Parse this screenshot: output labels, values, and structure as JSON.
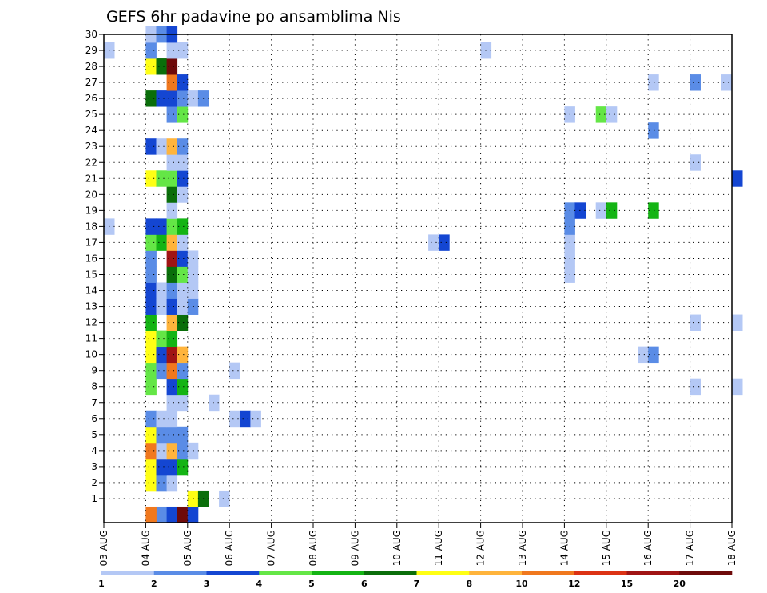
{
  "chart_data": {
    "type": "heatmap",
    "title": "GEFS 6hr padavine po ansamblima Nis",
    "x_ticks": [
      "03 AUG",
      "04 AUG",
      "05 AUG",
      "06 AUG",
      "07 AUG",
      "08 AUG",
      "09 AUG",
      "10 AUG",
      "11 AUG",
      "12 AUG",
      "13 AUG",
      "14 AUG",
      "15 AUG",
      "16 AUG",
      "17 AUG",
      "18 AUG"
    ],
    "y_ticks": [
      "1",
      "2",
      "3",
      "4",
      "5",
      "6",
      "7",
      "8",
      "9",
      "10",
      "11",
      "12",
      "13",
      "14",
      "15",
      "16",
      "17",
      "18",
      "19",
      "20",
      "21",
      "22",
      "23",
      "24",
      "25",
      "26",
      "27",
      "28",
      "29",
      "30"
    ],
    "colorbar": {
      "levels": [
        1,
        2,
        3,
        4,
        5,
        6,
        7,
        8,
        10,
        12,
        15,
        20
      ],
      "labels": [
        "1",
        "2",
        "3",
        "4",
        "5",
        "6",
        "7",
        "8",
        "10",
        "12",
        "15",
        "20"
      ],
      "colors": [
        "#b4c8f5",
        "#5a8ce6",
        "#1446d2",
        "#64e646",
        "#14b414",
        "#0a6e0a",
        "#ffff14",
        "#ffb43c",
        "#f0781e",
        "#dc3214",
        "#a01414",
        "#6e0a0a"
      ]
    },
    "grid": true,
    "cells": [
      {
        "m": 0,
        "d": "04 AUG",
        "s": 1,
        "c": 1
      },
      {
        "m": 0,
        "d": "04 AUG",
        "s": 2,
        "c": 2
      },
      {
        "m": 0,
        "d": "04 AUG",
        "s": 3,
        "c": 11
      },
      {
        "m": 0,
        "d": "05 AUG",
        "s": 0,
        "c": 2
      },
      {
        "m": 0,
        "d": "04 AUG",
        "s": 0,
        "c": 8
      },
      {
        "m": 1,
        "d": "05 AUG",
        "s": 0,
        "c": 6
      },
      {
        "m": 1,
        "d": "05 AUG",
        "s": 1,
        "c": 5
      },
      {
        "m": 1,
        "d": "05 AUG",
        "s": 3,
        "c": 0
      },
      {
        "m": 2,
        "d": "04 AUG",
        "s": 0,
        "c": 6
      },
      {
        "m": 2,
        "d": "04 AUG",
        "s": 1,
        "c": 1
      },
      {
        "m": 2,
        "d": "04 AUG",
        "s": 2,
        "c": 0
      },
      {
        "m": 3,
        "d": "04 AUG",
        "s": 0,
        "c": 6
      },
      {
        "m": 3,
        "d": "04 AUG",
        "s": 1,
        "c": 2
      },
      {
        "m": 3,
        "d": "04 AUG",
        "s": 2,
        "c": 2
      },
      {
        "m": 3,
        "d": "04 AUG",
        "s": 3,
        "c": 4
      },
      {
        "m": 4,
        "d": "04 AUG",
        "s": 0,
        "c": 8
      },
      {
        "m": 4,
        "d": "04 AUG",
        "s": 1,
        "c": 0
      },
      {
        "m": 4,
        "d": "04 AUG",
        "s": 2,
        "c": 7
      },
      {
        "m": 4,
        "d": "04 AUG",
        "s": 3,
        "c": 1
      },
      {
        "m": 4,
        "d": "05 AUG",
        "s": 0,
        "c": 0
      },
      {
        "m": 5,
        "d": "04 AUG",
        "s": 0,
        "c": 6
      },
      {
        "m": 5,
        "d": "04 AUG",
        "s": 1,
        "c": 1
      },
      {
        "m": 5,
        "d": "04 AUG",
        "s": 2,
        "c": 1
      },
      {
        "m": 5,
        "d": "04 AUG",
        "s": 3,
        "c": 1
      },
      {
        "m": 6,
        "d": "04 AUG",
        "s": 0,
        "c": 1
      },
      {
        "m": 6,
        "d": "04 AUG",
        "s": 1,
        "c": 0
      },
      {
        "m": 6,
        "d": "04 AUG",
        "s": 2,
        "c": 0
      },
      {
        "m": 6,
        "d": "06 AUG",
        "s": 0,
        "c": 0
      },
      {
        "m": 6,
        "d": "06 AUG",
        "s": 1,
        "c": 2
      },
      {
        "m": 6,
        "d": "06 AUG",
        "s": 2,
        "c": 0
      },
      {
        "m": 7,
        "d": "04 AUG",
        "s": 2,
        "c": 0
      },
      {
        "m": 7,
        "d": "04 AUG",
        "s": 3,
        "c": 0
      },
      {
        "m": 7,
        "d": "05 AUG",
        "s": 2,
        "c": 0
      },
      {
        "m": 8,
        "d": "04 AUG",
        "s": 0,
        "c": 3
      },
      {
        "m": 8,
        "d": "04 AUG",
        "s": 2,
        "c": 2
      },
      {
        "m": 8,
        "d": "04 AUG",
        "s": 3,
        "c": 4
      },
      {
        "m": 8,
        "d": "17 AUG",
        "s": 0,
        "c": 0
      },
      {
        "m": 8,
        "d": "18 AUG",
        "s": 0,
        "c": 0
      },
      {
        "m": 9,
        "d": "04 AUG",
        "s": 0,
        "c": 3
      },
      {
        "m": 9,
        "d": "04 AUG",
        "s": 1,
        "c": 1
      },
      {
        "m": 9,
        "d": "04 AUG",
        "s": 2,
        "c": 8
      },
      {
        "m": 9,
        "d": "04 AUG",
        "s": 3,
        "c": 1
      },
      {
        "m": 9,
        "d": "06 AUG",
        "s": 0,
        "c": 0
      },
      {
        "m": 10,
        "d": "04 AUG",
        "s": 0,
        "c": 6
      },
      {
        "m": 10,
        "d": "04 AUG",
        "s": 1,
        "c": 2
      },
      {
        "m": 10,
        "d": "04 AUG",
        "s": 2,
        "c": 10
      },
      {
        "m": 10,
        "d": "04 AUG",
        "s": 3,
        "c": 7
      },
      {
        "m": 10,
        "d": "15 AUG",
        "s": 3,
        "c": 0
      },
      {
        "m": 10,
        "d": "16 AUG",
        "s": 0,
        "c": 1
      },
      {
        "m": 11,
        "d": "04 AUG",
        "s": 0,
        "c": 6
      },
      {
        "m": 11,
        "d": "04 AUG",
        "s": 1,
        "c": 3
      },
      {
        "m": 11,
        "d": "04 AUG",
        "s": 2,
        "c": 4
      },
      {
        "m": 12,
        "d": "04 AUG",
        "s": 0,
        "c": 4
      },
      {
        "m": 12,
        "d": "04 AUG",
        "s": 2,
        "c": 7
      },
      {
        "m": 12,
        "d": "04 AUG",
        "s": 3,
        "c": 5
      },
      {
        "m": 12,
        "d": "17 AUG",
        "s": 0,
        "c": 0
      },
      {
        "m": 12,
        "d": "18 AUG",
        "s": 0,
        "c": 0
      },
      {
        "m": 13,
        "d": "04 AUG",
        "s": 0,
        "c": 2
      },
      {
        "m": 13,
        "d": "04 AUG",
        "s": 1,
        "c": 0
      },
      {
        "m": 13,
        "d": "04 AUG",
        "s": 2,
        "c": 2
      },
      {
        "m": 13,
        "d": "04 AUG",
        "s": 3,
        "c": 0
      },
      {
        "m": 13,
        "d": "05 AUG",
        "s": 0,
        "c": 1
      },
      {
        "m": 14,
        "d": "04 AUG",
        "s": 0,
        "c": 2
      },
      {
        "m": 14,
        "d": "04 AUG",
        "s": 1,
        "c": 0
      },
      {
        "m": 14,
        "d": "04 AUG",
        "s": 2,
        "c": 1
      },
      {
        "m": 14,
        "d": "04 AUG",
        "s": 3,
        "c": 0
      },
      {
        "m": 14,
        "d": "05 AUG",
        "s": 0,
        "c": 0
      },
      {
        "m": 15,
        "d": "04 AUG",
        "s": 0,
        "c": 1
      },
      {
        "m": 15,
        "d": "04 AUG",
        "s": 2,
        "c": 5
      },
      {
        "m": 15,
        "d": "04 AUG",
        "s": 3,
        "c": 3
      },
      {
        "m": 15,
        "d": "05 AUG",
        "s": 0,
        "c": 0
      },
      {
        "m": 15,
        "d": "14 AUG",
        "s": 0,
        "c": 0
      },
      {
        "m": 16,
        "d": "04 AUG",
        "s": 0,
        "c": 1
      },
      {
        "m": 16,
        "d": "04 AUG",
        "s": 2,
        "c": 10
      },
      {
        "m": 16,
        "d": "04 AUG",
        "s": 3,
        "c": 2
      },
      {
        "m": 16,
        "d": "05 AUG",
        "s": 0,
        "c": 0
      },
      {
        "m": 16,
        "d": "14 AUG",
        "s": 0,
        "c": 0
      },
      {
        "m": 17,
        "d": "04 AUG",
        "s": 0,
        "c": 3
      },
      {
        "m": 17,
        "d": "04 AUG",
        "s": 1,
        "c": 4
      },
      {
        "m": 17,
        "d": "04 AUG",
        "s": 2,
        "c": 7
      },
      {
        "m": 17,
        "d": "04 AUG",
        "s": 3,
        "c": 0
      },
      {
        "m": 17,
        "d": "10 AUG",
        "s": 3,
        "c": 0
      },
      {
        "m": 17,
        "d": "11 AUG",
        "s": 0,
        "c": 2
      },
      {
        "m": 17,
        "d": "14 AUG",
        "s": 0,
        "c": 0
      },
      {
        "m": 18,
        "d": "03 AUG",
        "s": 0,
        "c": 0
      },
      {
        "m": 18,
        "d": "04 AUG",
        "s": 0,
        "c": 2
      },
      {
        "m": 18,
        "d": "04 AUG",
        "s": 1,
        "c": 2
      },
      {
        "m": 18,
        "d": "04 AUG",
        "s": 2,
        "c": 3
      },
      {
        "m": 18,
        "d": "04 AUG",
        "s": 3,
        "c": 4
      },
      {
        "m": 18,
        "d": "14 AUG",
        "s": 0,
        "c": 1
      },
      {
        "m": 19,
        "d": "04 AUG",
        "s": 2,
        "c": 0
      },
      {
        "m": 19,
        "d": "14 AUG",
        "s": 0,
        "c": 1
      },
      {
        "m": 19,
        "d": "14 AUG",
        "s": 1,
        "c": 2
      },
      {
        "m": 19,
        "d": "14 AUG",
        "s": 3,
        "c": 0
      },
      {
        "m": 19,
        "d": "15 AUG",
        "s": 0,
        "c": 4
      },
      {
        "m": 19,
        "d": "16 AUG",
        "s": 0,
        "c": 4
      },
      {
        "m": 20,
        "d": "04 AUG",
        "s": 2,
        "c": 5
      },
      {
        "m": 20,
        "d": "04 AUG",
        "s": 3,
        "c": 0
      },
      {
        "m": 21,
        "d": "04 AUG",
        "s": 0,
        "c": 6
      },
      {
        "m": 21,
        "d": "04 AUG",
        "s": 1,
        "c": 3
      },
      {
        "m": 21,
        "d": "04 AUG",
        "s": 2,
        "c": 3
      },
      {
        "m": 21,
        "d": "04 AUG",
        "s": 3,
        "c": 2
      },
      {
        "m": 21,
        "d": "18 AUG",
        "s": 0,
        "c": 2
      },
      {
        "m": 22,
        "d": "04 AUG",
        "s": 2,
        "c": 0
      },
      {
        "m": 22,
        "d": "04 AUG",
        "s": 3,
        "c": 0
      },
      {
        "m": 22,
        "d": "17 AUG",
        "s": 0,
        "c": 0
      },
      {
        "m": 23,
        "d": "04 AUG",
        "s": 0,
        "c": 2
      },
      {
        "m": 23,
        "d": "04 AUG",
        "s": 1,
        "c": 0
      },
      {
        "m": 23,
        "d": "04 AUG",
        "s": 2,
        "c": 7
      },
      {
        "m": 23,
        "d": "04 AUG",
        "s": 3,
        "c": 1
      },
      {
        "m": 24,
        "d": "16 AUG",
        "s": 0,
        "c": 1
      },
      {
        "m": 25,
        "d": "04 AUG",
        "s": 2,
        "c": 1
      },
      {
        "m": 25,
        "d": "04 AUG",
        "s": 3,
        "c": 3
      },
      {
        "m": 25,
        "d": "14 AUG",
        "s": 0,
        "c": 0
      },
      {
        "m": 25,
        "d": "14 AUG",
        "s": 3,
        "c": 3
      },
      {
        "m": 25,
        "d": "15 AUG",
        "s": 0,
        "c": 0
      },
      {
        "m": 26,
        "d": "04 AUG",
        "s": 0,
        "c": 5
      },
      {
        "m": 26,
        "d": "04 AUG",
        "s": 1,
        "c": 2
      },
      {
        "m": 26,
        "d": "04 AUG",
        "s": 2,
        "c": 2
      },
      {
        "m": 26,
        "d": "04 AUG",
        "s": 3,
        "c": 1
      },
      {
        "m": 26,
        "d": "05 AUG",
        "s": 0,
        "c": 0
      },
      {
        "m": 26,
        "d": "05 AUG",
        "s": 1,
        "c": 1
      },
      {
        "m": 27,
        "d": "04 AUG",
        "s": 2,
        "c": 8
      },
      {
        "m": 27,
        "d": "04 AUG",
        "s": 3,
        "c": 2
      },
      {
        "m": 27,
        "d": "16 AUG",
        "s": 0,
        "c": 0
      },
      {
        "m": 27,
        "d": "17 AUG",
        "s": 0,
        "c": 1
      },
      {
        "m": 27,
        "d": "17 AUG",
        "s": 3,
        "c": 0
      },
      {
        "m": 28,
        "d": "04 AUG",
        "s": 0,
        "c": 6
      },
      {
        "m": 28,
        "d": "04 AUG",
        "s": 1,
        "c": 5
      },
      {
        "m": 28,
        "d": "04 AUG",
        "s": 2,
        "c": 11
      },
      {
        "m": 29,
        "d": "03 AUG",
        "s": 0,
        "c": 0
      },
      {
        "m": 29,
        "d": "04 AUG",
        "s": 0,
        "c": 1
      },
      {
        "m": 29,
        "d": "04 AUG",
        "s": 2,
        "c": 0
      },
      {
        "m": 29,
        "d": "04 AUG",
        "s": 3,
        "c": 0
      },
      {
        "m": 29,
        "d": "12 AUG",
        "s": 0,
        "c": 0
      },
      {
        "m": 30,
        "d": "04 AUG",
        "s": 0,
        "c": 0
      },
      {
        "m": 30,
        "d": "04 AUG",
        "s": 1,
        "c": 1
      },
      {
        "m": 30,
        "d": "04 AUG",
        "s": 2,
        "c": 2
      }
    ]
  }
}
